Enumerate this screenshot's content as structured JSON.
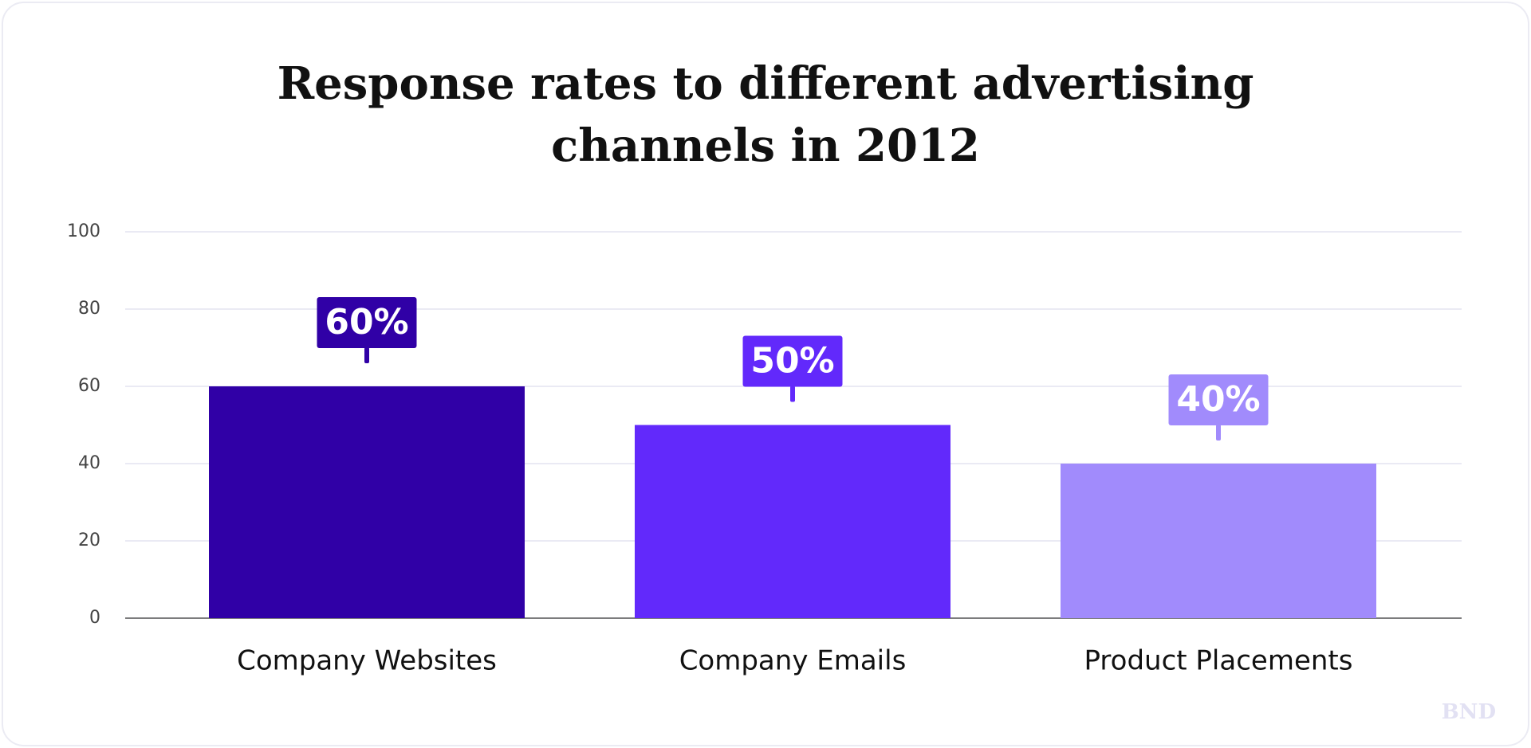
{
  "chart_data": {
    "type": "bar",
    "title": "Response rates to different advertising channels in 2012",
    "categories": [
      "Company Websites",
      "Company Emails",
      "Product Placements"
    ],
    "values": [
      60,
      50,
      40
    ],
    "value_labels": [
      "60%",
      "50%",
      "40%"
    ],
    "colors": [
      "#3000a6",
      "#6229fb",
      "#a18bfc"
    ],
    "ylim": [
      0,
      100
    ],
    "yticks": [
      0,
      20,
      40,
      60,
      80,
      100
    ],
    "grid": true,
    "watermark": "BND"
  }
}
